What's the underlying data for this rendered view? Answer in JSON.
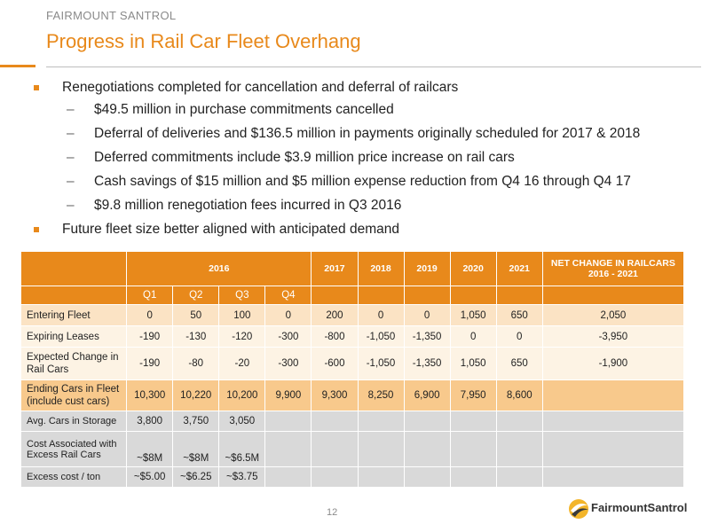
{
  "header": {
    "company": "FAIRMOUNT SANTROL",
    "title": "Progress in Rail Car Fleet Overhang"
  },
  "bullets": {
    "b1": "Renegotiations completed for cancellation and deferral of railcars",
    "b1_subs": [
      "$49.5 million in purchase commitments cancelled",
      "Deferral of deliveries and $136.5 million in payments originally scheduled for 2017 & 2018",
      "Deferred commitments include $3.9 million price increase on rail cars",
      "Cash savings of $15 million and $5 million expense reduction from Q4 16 through Q4 17",
      "$9.8 million renegotiation fees incurred in Q3 2016"
    ],
    "b2": "Future fleet size better aligned with anticipated demand"
  },
  "table": {
    "header_years": [
      "2016",
      "2017",
      "2018",
      "2019",
      "2020",
      "2021"
    ],
    "net_change": "NET CHANGE IN RAILCARS 2016 - 2021",
    "quarters": [
      "Q1",
      "Q2",
      "Q3",
      "Q4"
    ],
    "rows": [
      {
        "label": "Entering Fleet",
        "values": [
          "0",
          "50",
          "100",
          "0",
          "200",
          "0",
          "0",
          "1,050",
          "650",
          "2,050"
        ]
      },
      {
        "label": "Expiring Leases",
        "values": [
          "-190",
          "-130",
          "-120",
          "-300",
          "-800",
          "-1,050",
          "-1,350",
          "0",
          "0",
          "-3,950"
        ]
      },
      {
        "label": "Expected Change in Rail Cars",
        "values": [
          "-190",
          "-80",
          "-20",
          "-300",
          "-600",
          "-1,050",
          "-1,350",
          "1,050",
          "650",
          "-1,900"
        ]
      },
      {
        "label": "Ending Cars in Fleet (include cust cars)",
        "values": [
          "10,300",
          "10,220",
          "10,200",
          "9,900",
          "9,300",
          "8,250",
          "6,900",
          "7,950",
          "8,600",
          ""
        ]
      },
      {
        "label": "Avg. Cars in Storage",
        "values": [
          "3,800",
          "3,750",
          "3,050",
          "",
          "",
          "",
          "",
          "",
          "",
          ""
        ]
      },
      {
        "label": "Cost Associated with Excess Rail Cars",
        "values": [
          "~$8M",
          "~$8M",
          "~$6.5M",
          "",
          "",
          "",
          "",
          "",
          "",
          ""
        ]
      },
      {
        "label": "Excess cost / ton",
        "values": [
          "~$5.00",
          "~$6.25",
          "~$3.75",
          "",
          "",
          "",
          "",
          "",
          "",
          ""
        ]
      }
    ]
  },
  "footer": {
    "page_number": "12",
    "logo_text": "FairmountSantrol"
  }
}
